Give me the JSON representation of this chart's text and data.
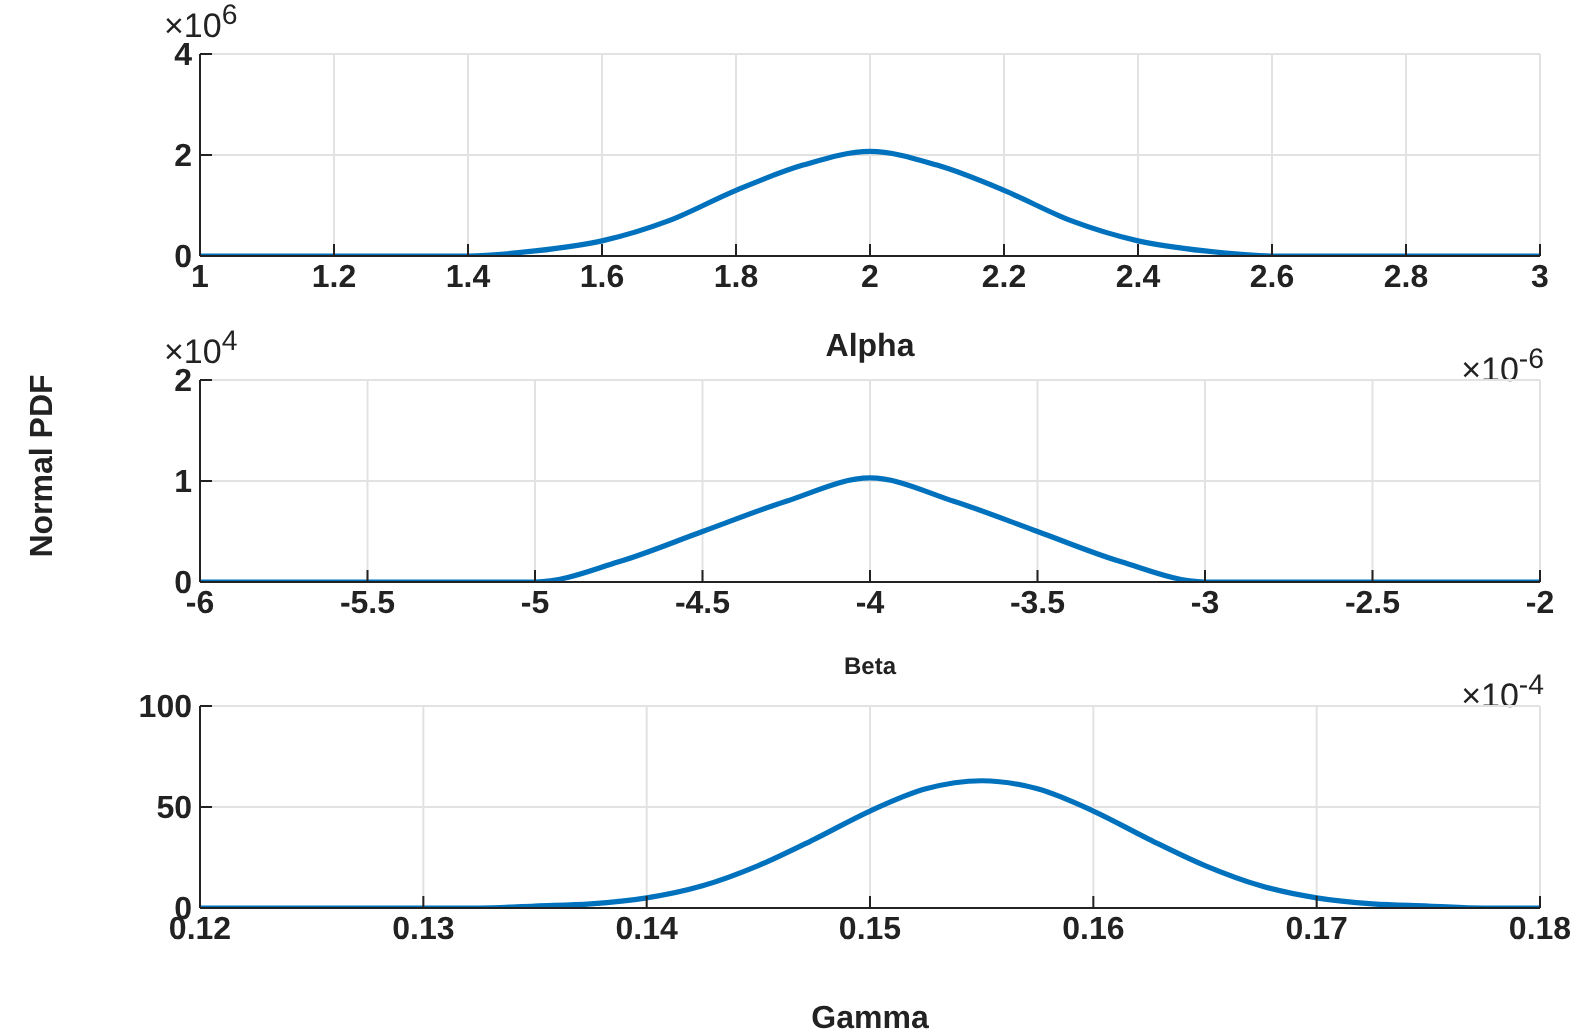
{
  "chart_data": [
    {
      "type": "line",
      "xlabel": "Alpha",
      "annotations": [
        "×10$^{6}$",
        "×10$^{-6}$"
      ],
      "xlim": [
        1,
        3
      ],
      "xticks": [
        1,
        1.2,
        1.4,
        1.6,
        1.8,
        2,
        2.2,
        2.4,
        2.6,
        2.8,
        3
      ],
      "ylim": [
        0,
        4
      ],
      "yticks": [
        0,
        2,
        4
      ],
      "grid": true,
      "marker": "none",
      "line_style": "solid",
      "series": [
        {
          "color": "#0072bd",
          "x": [
            1,
            1.1,
            1.2,
            1.3,
            1.4,
            1.5,
            1.6,
            1.7,
            1.8,
            1.9,
            2,
            2.1,
            2.2,
            2.3,
            2.4,
            2.5,
            2.6,
            2.7,
            2.8,
            2.9,
            3
          ],
          "values": [
            0,
            0,
            0,
            0,
            0,
            0.1,
            0.3,
            0.7,
            1.3,
            1.8,
            2.07,
            1.8,
            1.3,
            0.7,
            0.3,
            0.1,
            0,
            0,
            0,
            0,
            0
          ]
        }
      ]
    },
    {
      "type": "line",
      "xlabel": "Beta",
      "ylabel": "Normal PDF",
      "annotations": [
        "×10$^{4}$",
        "×10$^{-4}$"
      ],
      "xlim": [
        -6,
        -2
      ],
      "xticks": [
        -6,
        -5.5,
        -5,
        -4.5,
        -4,
        -3.5,
        -3,
        -2.5,
        -2
      ],
      "ylim": [
        0,
        2
      ],
      "yticks": [
        0,
        1,
        2
      ],
      "grid": true,
      "marker": "none",
      "line_style": "solid",
      "series": [
        {
          "color": "#0072bd",
          "x": [
            -6,
            -5.75,
            -5.5,
            -5.25,
            -5,
            -4.75,
            -4.5,
            -4.25,
            -4,
            -3.75,
            -3.5,
            -3.25,
            -3,
            -2.75,
            -2.5,
            -2.25,
            -2
          ],
          "values": [
            0,
            0,
            0,
            0,
            0,
            0.2,
            0.5,
            0.8,
            1.03,
            0.8,
            0.5,
            0.2,
            0,
            0,
            0,
            0,
            0
          ]
        }
      ]
    },
    {
      "type": "line",
      "xlabel": "Gamma",
      "xlim": [
        0.12,
        0.18
      ],
      "xticks": [
        0.12,
        0.13,
        0.14,
        0.15,
        0.16,
        0.17,
        0.18
      ],
      "ylim": [
        0,
        100
      ],
      "yticks": [
        0,
        50,
        100
      ],
      "grid": true,
      "marker": "none",
      "line_style": "solid",
      "series": [
        {
          "color": "#0072bd",
          "x": [
            0.12,
            0.1225,
            0.125,
            0.1275,
            0.13,
            0.1325,
            0.135,
            0.1375,
            0.14,
            0.1425,
            0.145,
            0.1475,
            0.15,
            0.1525,
            0.155,
            0.1575,
            0.16,
            0.1625,
            0.165,
            0.1675,
            0.17,
            0.1725,
            0.175,
            0.1775,
            0.18
          ],
          "values": [
            0,
            0,
            0,
            0,
            0,
            0,
            1,
            2,
            5,
            11,
            21,
            34,
            48,
            59,
            63,
            59,
            48,
            34,
            21,
            11,
            5,
            2,
            1,
            0,
            0
          ]
        }
      ]
    }
  ]
}
